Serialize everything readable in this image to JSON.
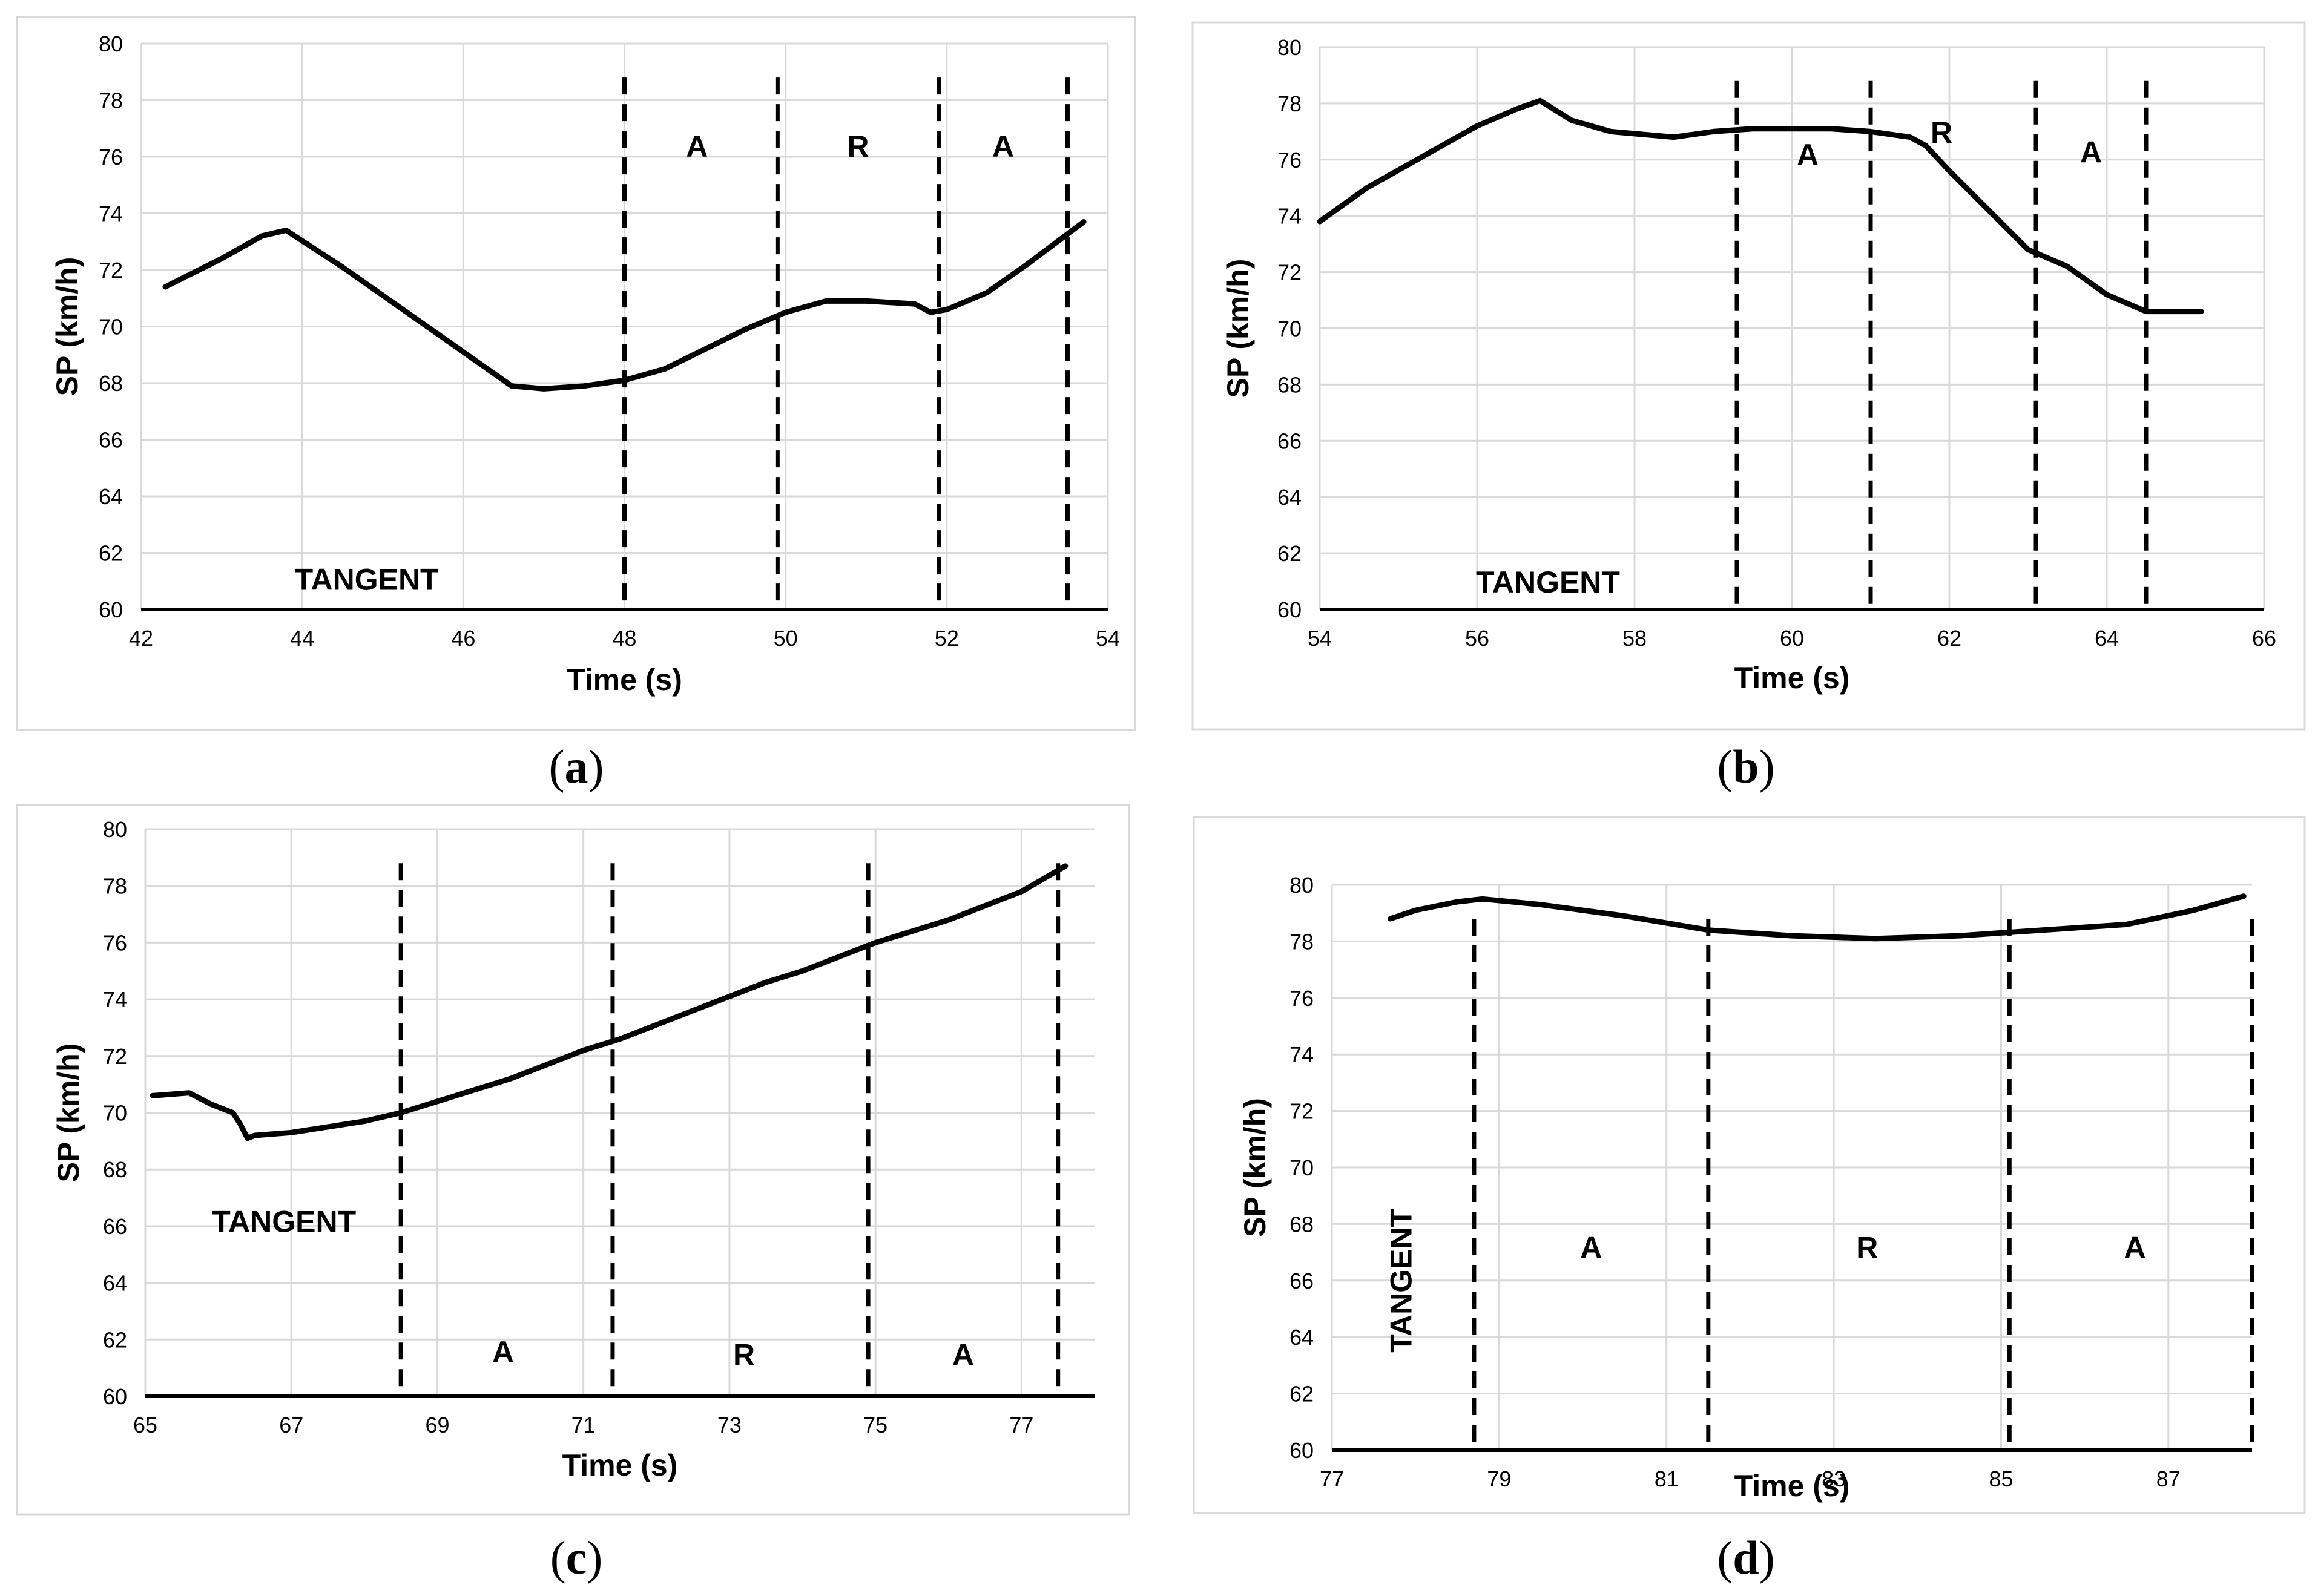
{
  "chart_data": [
    {
      "id": "a",
      "type": "line",
      "caption_letter": "a",
      "xlabel": "Time (s)",
      "ylabel": "SP (km/h)",
      "xlim": [
        42,
        54
      ],
      "ylim": [
        60,
        80
      ],
      "xticks": [
        42,
        44,
        46,
        48,
        50,
        52,
        54
      ],
      "yticks": [
        60,
        62,
        64,
        66,
        68,
        70,
        72,
        74,
        76,
        78,
        80
      ],
      "grid": true,
      "series": [
        {
          "name": "SP",
          "x": [
            42.3,
            43.0,
            43.5,
            43.8,
            44.5,
            45.5,
            46.6,
            47.0,
            47.5,
            48.0,
            48.5,
            49.0,
            49.5,
            50.0,
            50.5,
            51.0,
            51.6,
            51.8,
            52.0,
            52.5,
            53.0,
            53.7
          ],
          "y": [
            71.4,
            72.4,
            73.2,
            73.4,
            72.1,
            70.1,
            67.9,
            67.8,
            67.9,
            68.1,
            68.5,
            69.2,
            69.9,
            70.5,
            70.9,
            70.9,
            70.8,
            70.5,
            70.6,
            71.2,
            72.2,
            73.7
          ]
        }
      ],
      "dividers": [
        48,
        49.9,
        51.9,
        53.5
      ],
      "segment_labels": [
        {
          "text": "A",
          "x": 48.9,
          "y": 76.0
        },
        {
          "text": "R",
          "x": 50.9,
          "y": 76.0
        },
        {
          "text": "A",
          "x": 52.7,
          "y": 76.0
        },
        {
          "text": "TANGENT",
          "x": 44.8,
          "y": 60.7
        }
      ]
    },
    {
      "id": "b",
      "type": "line",
      "caption_letter": "b",
      "xlabel": "Time (s)",
      "ylabel": "SP (km/h)",
      "xlim": [
        54,
        66
      ],
      "ylim": [
        60,
        80
      ],
      "xticks": [
        54,
        56,
        58,
        60,
        62,
        64,
        66
      ],
      "yticks": [
        60,
        62,
        64,
        66,
        68,
        70,
        72,
        74,
        76,
        78,
        80
      ],
      "grid": true,
      "series": [
        {
          "name": "SP",
          "x": [
            54.0,
            54.6,
            55.3,
            56.0,
            56.5,
            56.8,
            57.2,
            57.7,
            58.5,
            59.0,
            59.5,
            60.0,
            60.5,
            61.0,
            61.5,
            61.7,
            62.0,
            62.5,
            63.0,
            63.5,
            64.0,
            64.5,
            65.0,
            65.2
          ],
          "y": [
            73.8,
            75.0,
            76.1,
            77.2,
            77.8,
            78.1,
            77.4,
            77.0,
            76.8,
            77.0,
            77.1,
            77.1,
            77.1,
            77.0,
            76.8,
            76.5,
            75.6,
            74.2,
            72.8,
            72.2,
            71.2,
            70.6,
            70.6,
            70.6
          ]
        }
      ],
      "dividers": [
        59.3,
        61.0,
        63.1,
        64.5
      ],
      "segment_labels": [
        {
          "text": "A",
          "x": 60.2,
          "y": 75.8
        },
        {
          "text": "R",
          "x": 61.9,
          "y": 76.6
        },
        {
          "text": "A",
          "x": 63.8,
          "y": 75.9
        },
        {
          "text": "TANGENT",
          "x": 56.9,
          "y": 60.6
        }
      ]
    },
    {
      "id": "c",
      "type": "line",
      "caption_letter": "c",
      "xlabel": "Time (s)",
      "ylabel": "SP (km/h)",
      "xlim": [
        65,
        78
      ],
      "ylim": [
        60,
        80
      ],
      "xticks": [
        65,
        67,
        69,
        71,
        73,
        75,
        77
      ],
      "yticks": [
        60,
        62,
        64,
        66,
        68,
        70,
        72,
        74,
        76,
        78,
        80
      ],
      "grid": true,
      "series": [
        {
          "name": "SP",
          "x": [
            65.1,
            65.6,
            65.9,
            66.2,
            66.3,
            66.4,
            66.5,
            67.0,
            67.5,
            68.0,
            68.5,
            69.0,
            69.5,
            70.0,
            70.5,
            71.0,
            71.5,
            72.0,
            72.5,
            73.0,
            73.5,
            74.0,
            74.5,
            75.0,
            75.5,
            76.0,
            76.5,
            77.0,
            77.6
          ],
          "y": [
            70.6,
            70.7,
            70.3,
            70.0,
            69.6,
            69.1,
            69.2,
            69.3,
            69.5,
            69.7,
            70.0,
            70.4,
            70.8,
            71.2,
            71.7,
            72.2,
            72.6,
            73.1,
            73.6,
            74.1,
            74.6,
            75.0,
            75.5,
            76.0,
            76.4,
            76.8,
            77.3,
            77.8,
            78.7
          ]
        }
      ],
      "dividers": [
        68.5,
        71.4,
        74.9,
        77.5
      ],
      "segment_labels": [
        {
          "text": "A",
          "x": 69.9,
          "y": 61.2
        },
        {
          "text": "R",
          "x": 73.2,
          "y": 61.1
        },
        {
          "text": "A",
          "x": 76.2,
          "y": 61.1
        },
        {
          "text": "TANGENT",
          "x": 66.9,
          "y": 65.8
        }
      ]
    },
    {
      "id": "d",
      "type": "line",
      "caption_letter": "d",
      "xlabel": "Time (s)",
      "ylabel": "SP (km/h)",
      "xlim": [
        77,
        88
      ],
      "ylim": [
        60,
        80
      ],
      "xticks": [
        77,
        79,
        81,
        83,
        85,
        87
      ],
      "yticks": [
        60,
        62,
        64,
        66,
        68,
        70,
        72,
        74,
        76,
        78,
        80
      ],
      "grid": true,
      "series": [
        {
          "name": "SP",
          "x": [
            77.7,
            78.0,
            78.5,
            78.8,
            79.5,
            80.5,
            81.5,
            82.5,
            83.5,
            84.5,
            85.5,
            86.5,
            87.3,
            87.9
          ],
          "y": [
            78.8,
            79.1,
            79.4,
            79.5,
            79.3,
            78.9,
            78.4,
            78.2,
            78.1,
            78.2,
            78.4,
            78.6,
            79.1,
            79.6
          ]
        }
      ],
      "dividers": [
        78.7,
        81.5,
        85.1,
        88.0
      ],
      "segment_labels": [
        {
          "text": "A",
          "x": 80.1,
          "y": 66.8
        },
        {
          "text": "R",
          "x": 83.4,
          "y": 66.8
        },
        {
          "text": "A",
          "x": 86.6,
          "y": 66.8
        },
        {
          "text": "TANGENT",
          "x": 77.95,
          "y": 66.0,
          "rotated": true
        }
      ]
    }
  ]
}
